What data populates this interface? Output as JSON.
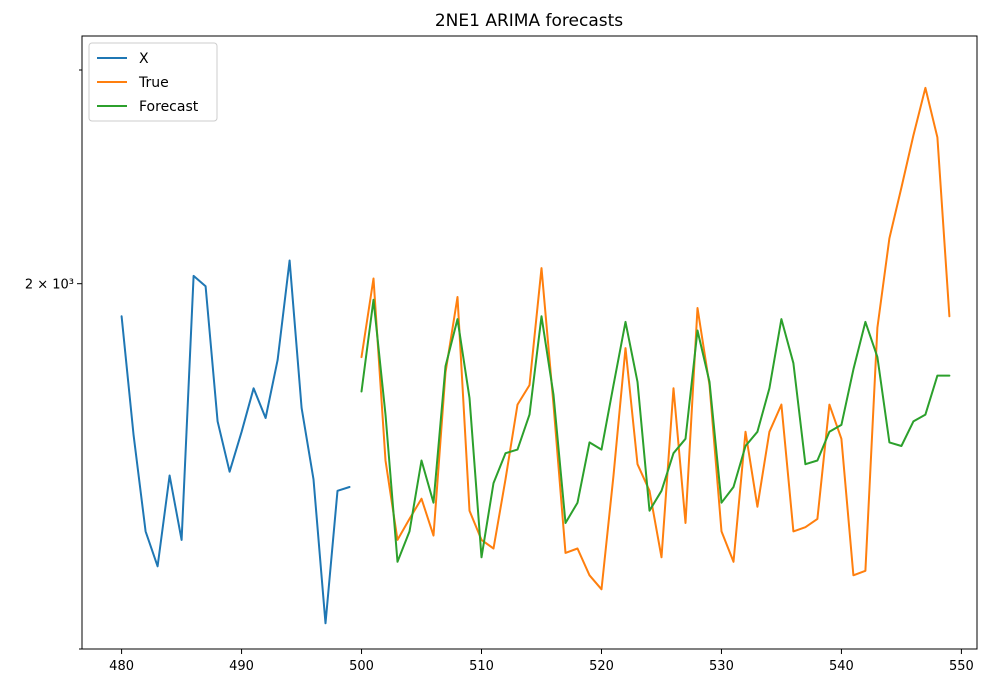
{
  "chart_data": {
    "type": "line",
    "title": "2NE1 ARIMA forecasts",
    "xlabel": "",
    "ylabel": "",
    "xlim": [
      476.7,
      551.3
    ],
    "ylim": [
      1000,
      3200
    ],
    "yscale": "log",
    "xticks": [
      480,
      490,
      500,
      510,
      520,
      530,
      540,
      550
    ],
    "yticks": [
      {
        "value": 2000,
        "label": "2 × 10³"
      }
    ],
    "grid": false,
    "legend": "top-left",
    "series": [
      {
        "name": "X",
        "color": "#1f77b4",
        "x": [
          480,
          481,
          482,
          483,
          484,
          485,
          486,
          487,
          488,
          489,
          490,
          491,
          492,
          493,
          494,
          495,
          496,
          497,
          498,
          499
        ],
        "y": [
          1880,
          1500,
          1250,
          1170,
          1390,
          1230,
          2030,
          1990,
          1540,
          1400,
          1510,
          1640,
          1550,
          1730,
          2090,
          1580,
          1380,
          1050,
          1350,
          1360
        ]
      },
      {
        "name": "True",
        "color": "#ff7f0e",
        "x": [
          500,
          501,
          502,
          503,
          504,
          505,
          506,
          507,
          508,
          509,
          510,
          511,
          512,
          513,
          514,
          515,
          516,
          517,
          518,
          519,
          520,
          521,
          522,
          523,
          524,
          525,
          526,
          527,
          528,
          529,
          530,
          531,
          532,
          533,
          534,
          535,
          536,
          537,
          538,
          539,
          540,
          541,
          542,
          543,
          544,
          545,
          546,
          547,
          548,
          549
        ],
        "y": [
          1740,
          2020,
          1430,
          1230,
          1280,
          1330,
          1240,
          1690,
          1950,
          1300,
          1230,
          1210,
          1380,
          1590,
          1650,
          2060,
          1590,
          1200,
          1210,
          1150,
          1120,
          1390,
          1770,
          1420,
          1350,
          1190,
          1640,
          1270,
          1910,
          1650,
          1250,
          1180,
          1510,
          1310,
          1510,
          1590,
          1250,
          1260,
          1280,
          1590,
          1490,
          1150,
          1160,
          1840,
          2180,
          2400,
          2650,
          2900,
          2640,
          1880
        ]
      },
      {
        "name": "Forecast",
        "color": "#2ca02c",
        "x": [
          500,
          501,
          502,
          503,
          504,
          505,
          506,
          507,
          508,
          509,
          510,
          511,
          512,
          513,
          514,
          515,
          516,
          517,
          518,
          519,
          520,
          521,
          522,
          523,
          524,
          525,
          526,
          527,
          528,
          529,
          530,
          531,
          532,
          533,
          534,
          535,
          536,
          537,
          538,
          539,
          540,
          541,
          542,
          543,
          544,
          545,
          546,
          547,
          548,
          549
        ],
        "y": [
          1630,
          1940,
          1560,
          1180,
          1250,
          1430,
          1320,
          1710,
          1870,
          1610,
          1190,
          1370,
          1450,
          1460,
          1560,
          1880,
          1620,
          1270,
          1320,
          1480,
          1460,
          1650,
          1860,
          1660,
          1300,
          1350,
          1450,
          1490,
          1830,
          1660,
          1320,
          1360,
          1470,
          1510,
          1640,
          1870,
          1720,
          1420,
          1430,
          1510,
          1530,
          1700,
          1860,
          1740,
          1480,
          1470,
          1540,
          1560,
          1680,
          1680
        ]
      }
    ]
  }
}
